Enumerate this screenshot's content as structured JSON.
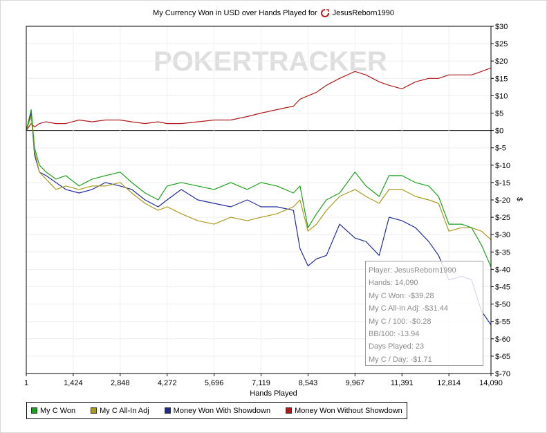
{
  "chart_data": {
    "type": "line",
    "title": "My Currency Won in USD over Hands Played for",
    "player_name": "JesusReborn1990",
    "watermark": "POKERTRACKER",
    "xlabel": "Hands Played",
    "ylabel": "$",
    "xlim": [
      1,
      14090
    ],
    "ylim": [
      -70,
      30
    ],
    "x_ticks": [
      "1",
      "1,424",
      "2,848",
      "4,272",
      "5,696",
      "7,119",
      "8,543",
      "9,967",
      "11,391",
      "12,814",
      "14,090"
    ],
    "y_ticks": [
      "$30",
      "$25",
      "$20",
      "$15",
      "$10",
      "$5",
      "$0",
      "$-5",
      "$-10",
      "$-15",
      "$-20",
      "$-25",
      "$-30",
      "$-35",
      "$-40",
      "$-45",
      "$-50",
      "$-55",
      "$-60",
      "$-65",
      "$-70"
    ],
    "grid": true,
    "legend_position": "bottom-left",
    "series": [
      {
        "name": "My C Won",
        "color": "#1aa01a",
        "x": [
          1,
          150,
          250,
          400,
          600,
          900,
          1200,
          1600,
          2000,
          2400,
          2848,
          3200,
          3600,
          4000,
          4272,
          4700,
          5200,
          5696,
          6200,
          6700,
          7119,
          7600,
          8100,
          8300,
          8543,
          8800,
          9100,
          9500,
          9967,
          10300,
          10700,
          11000,
          11391,
          11800,
          12200,
          12500,
          12814,
          13200,
          13500,
          13800,
          14090
        ],
        "y": [
          0,
          6,
          -5,
          -10,
          -12,
          -14,
          -13,
          -16,
          -14,
          -13,
          -12,
          -15,
          -18,
          -20,
          -16,
          -15,
          -16,
          -17,
          -15,
          -17,
          -15,
          -16,
          -18,
          -16,
          -28,
          -24,
          -20,
          -18,
          -12,
          -16,
          -19,
          -13,
          -13,
          -15,
          -16,
          -19,
          -27,
          -27,
          -28,
          -33,
          -39.28
        ]
      },
      {
        "name": "My C All-In Adj",
        "color": "#a89a1c",
        "x": [
          1,
          150,
          250,
          400,
          600,
          900,
          1200,
          1600,
          2000,
          2400,
          2848,
          3200,
          3600,
          4000,
          4272,
          4700,
          5200,
          5696,
          6200,
          6700,
          7119,
          7600,
          8100,
          8300,
          8543,
          8800,
          9100,
          9500,
          9967,
          10300,
          10700,
          11000,
          11391,
          11800,
          12200,
          12500,
          12814,
          13200,
          13500,
          13800,
          14090
        ],
        "y": [
          0,
          4,
          -6,
          -12,
          -14,
          -17,
          -16,
          -17,
          -16,
          -16,
          -15,
          -18,
          -21,
          -23,
          -22,
          -24,
          -26,
          -27,
          -25,
          -26,
          -25,
          -24,
          -22,
          -20,
          -29,
          -27,
          -23,
          -19,
          -17,
          -19,
          -21,
          -17,
          -17,
          -19,
          -20,
          -21,
          -29,
          -28,
          -28,
          -29,
          -31.44
        ]
      },
      {
        "name": "Money Won With Showdown",
        "color": "#1e2a9c",
        "x": [
          1,
          150,
          250,
          400,
          600,
          900,
          1200,
          1600,
          2000,
          2400,
          2848,
          3200,
          3600,
          4000,
          4272,
          4700,
          5200,
          5696,
          6200,
          6700,
          7119,
          7600,
          8100,
          8300,
          8543,
          8800,
          9100,
          9500,
          9967,
          10300,
          10700,
          11000,
          11391,
          11800,
          12200,
          12500,
          12814,
          13200,
          13500,
          13800,
          14090
        ],
        "y": [
          0,
          5,
          -7,
          -12,
          -13,
          -15,
          -17,
          -18,
          -17,
          -15,
          -16,
          -17,
          -20,
          -22,
          -20,
          -17,
          -20,
          -21,
          -22,
          -20,
          -22,
          -22,
          -23,
          -34,
          -39,
          -37,
          -36,
          -27,
          -31,
          -32,
          -36,
          -25,
          -26,
          -28,
          -32,
          -36,
          -43,
          -42,
          -43,
          -52,
          -56
        ]
      },
      {
        "name": "Money Won Without Showdown",
        "color": "#b01818",
        "x": [
          1,
          150,
          250,
          400,
          600,
          900,
          1200,
          1600,
          2000,
          2400,
          2848,
          3200,
          3600,
          4000,
          4272,
          4700,
          5200,
          5696,
          6200,
          6700,
          7119,
          7600,
          8100,
          8300,
          8543,
          8800,
          9100,
          9500,
          9967,
          10300,
          10700,
          11000,
          11391,
          11800,
          12200,
          12500,
          12814,
          13200,
          13500,
          13800,
          14090
        ],
        "y": [
          0,
          2,
          1,
          2,
          2.5,
          2,
          2,
          3,
          2.5,
          3,
          3,
          2.5,
          2,
          2.5,
          2,
          2,
          2.5,
          3,
          3,
          4,
          5,
          6,
          7,
          9,
          10,
          11,
          13,
          15,
          17,
          16,
          14,
          13,
          12,
          14,
          15,
          15,
          16,
          16,
          16,
          17,
          18
        ]
      }
    ]
  },
  "tooltip": {
    "lines": [
      "Player: JesusReborn1990",
      "Hands: 14,090",
      "My C Won: -$39.28",
      "My C All-In Adj: -$31.44",
      "My C / 100: -$0.28",
      "BB/100: -13.94",
      "Days Played: 23",
      "My C / Day: -$1.71"
    ]
  }
}
